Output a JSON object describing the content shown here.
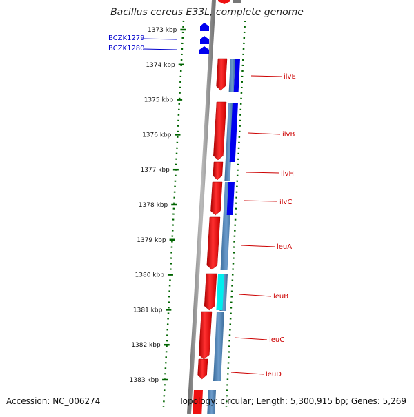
{
  "title": "Bacillus cereus E33L, complete genome",
  "footer": {
    "accession": "Accession: NC_006274",
    "summary": "Topology: circular; Length: 5,300,915 bp; Genes: 5,269"
  },
  "ticks": [
    "1373 kbp",
    "1374 kbp",
    "1375 kbp",
    "1376 kbp",
    "1377 kbp",
    "1378 kbp",
    "1379 kbp",
    "1380 kbp",
    "1381 kbp",
    "1382 kbp",
    "1383 kbp"
  ],
  "genes_left": [
    "BCZK1279",
    "BCZK1280"
  ],
  "genes_right": [
    "ilvE",
    "ilvB",
    "ilvH",
    "ilvC",
    "leuA",
    "leuB",
    "leuC",
    "leuD"
  ],
  "colors": {
    "cds": "#ee1111",
    "blast_dark": "#0000ee",
    "blast_mid": "#4a7fb0",
    "blast_cyan": "#00eeee",
    "small_gene": "#0000ee",
    "ticks": "#006400",
    "backbone": "#888888"
  }
}
